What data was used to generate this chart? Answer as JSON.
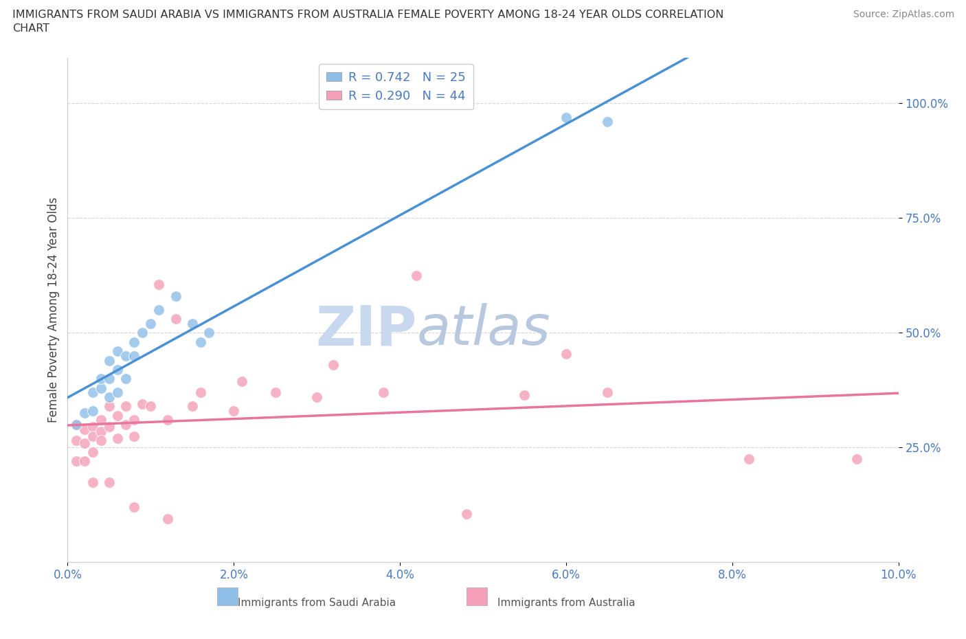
{
  "title_line1": "IMMIGRANTS FROM SAUDI ARABIA VS IMMIGRANTS FROM AUSTRALIA FEMALE POVERTY AMONG 18-24 YEAR OLDS CORRELATION",
  "title_line2": "CHART",
  "source": "Source: ZipAtlas.com",
  "ylabel": "Female Poverty Among 18-24 Year Olds",
  "xlim": [
    0.0,
    0.1
  ],
  "ylim": [
    0.0,
    1.1
  ],
  "yticks": [
    0.25,
    0.5,
    0.75,
    1.0
  ],
  "ytick_labels": [
    "25.0%",
    "50.0%",
    "75.0%",
    "100.0%"
  ],
  "xticks": [
    0.0,
    0.02,
    0.04,
    0.06,
    0.08,
    0.1
  ],
  "xtick_labels": [
    "0.0%",
    "2.0%",
    "4.0%",
    "6.0%",
    "8.0%",
    "10.0%"
  ],
  "saudi_color": "#8fbfe8",
  "australia_color": "#f4a0b8",
  "saudi_line_color": "#4a90d4",
  "australia_line_color": "#e8759a",
  "saudi_R": 0.742,
  "saudi_N": 25,
  "australia_R": 0.29,
  "australia_N": 44,
  "legend_R_color": "#4a7abf",
  "watermark_zip": "ZIP",
  "watermark_atlas": "atlas",
  "watermark_color_zip": "#c8d8ef",
  "watermark_color_atlas": "#b8c8df",
  "legend_label1": "Immigrants from Saudi Arabia",
  "legend_label2": "Immigrants from Australia",
  "saudi_x": [
    0.001,
    0.002,
    0.003,
    0.003,
    0.004,
    0.004,
    0.005,
    0.005,
    0.005,
    0.006,
    0.006,
    0.006,
    0.007,
    0.007,
    0.008,
    0.008,
    0.009,
    0.01,
    0.011,
    0.013,
    0.015,
    0.016,
    0.017,
    0.06,
    0.065
  ],
  "saudi_y": [
    0.3,
    0.325,
    0.33,
    0.37,
    0.38,
    0.4,
    0.36,
    0.4,
    0.44,
    0.37,
    0.42,
    0.46,
    0.4,
    0.45,
    0.45,
    0.48,
    0.5,
    0.52,
    0.55,
    0.58,
    0.52,
    0.48,
    0.5,
    0.97,
    0.96
  ],
  "australia_x": [
    0.001,
    0.001,
    0.002,
    0.002,
    0.003,
    0.003,
    0.003,
    0.004,
    0.004,
    0.004,
    0.005,
    0.005,
    0.006,
    0.006,
    0.007,
    0.007,
    0.008,
    0.008,
    0.009,
    0.01,
    0.011,
    0.012,
    0.013,
    0.015,
    0.016,
    0.02,
    0.021,
    0.025,
    0.03,
    0.032,
    0.038,
    0.042,
    0.048,
    0.055,
    0.06,
    0.065,
    0.082,
    0.095,
    0.001,
    0.002,
    0.003,
    0.005,
    0.008,
    0.012
  ],
  "australia_y": [
    0.3,
    0.265,
    0.29,
    0.26,
    0.295,
    0.275,
    0.24,
    0.31,
    0.285,
    0.265,
    0.34,
    0.295,
    0.32,
    0.27,
    0.34,
    0.3,
    0.31,
    0.275,
    0.345,
    0.34,
    0.605,
    0.31,
    0.53,
    0.34,
    0.37,
    0.33,
    0.395,
    0.37,
    0.36,
    0.43,
    0.37,
    0.625,
    0.105,
    0.365,
    0.455,
    0.37,
    0.225,
    0.225,
    0.22,
    0.22,
    0.175,
    0.175,
    0.12,
    0.095
  ],
  "background_color": "#ffffff",
  "grid_color": "#cccccc",
  "grid_linestyle": "--",
  "spine_color": "#cccccc"
}
